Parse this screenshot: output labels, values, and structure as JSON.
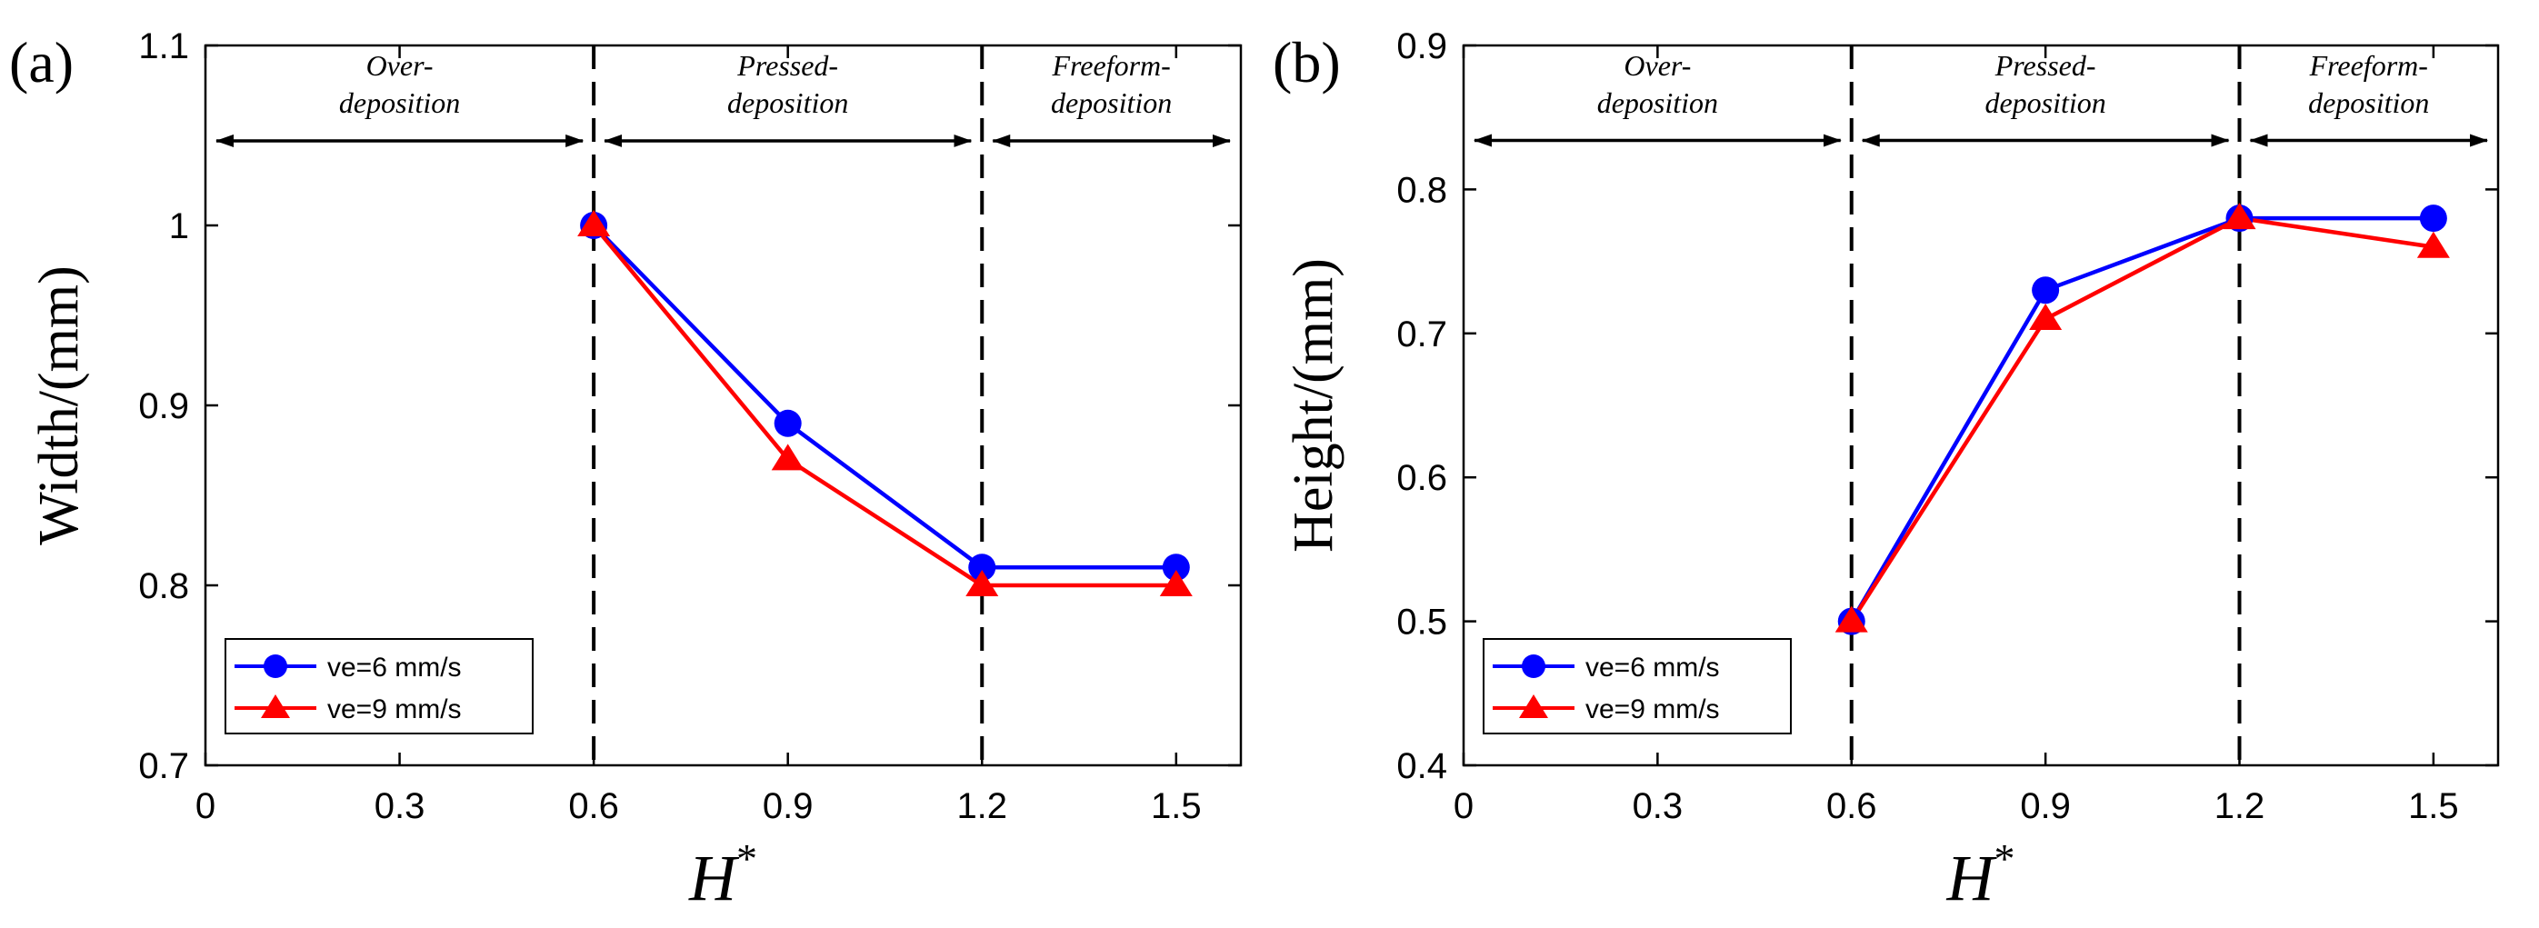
{
  "chart_data": [
    {
      "type": "line",
      "panel_label": "(a)",
      "xlabel": "H",
      "xlabel_superscript": "*",
      "ylabel": "Width/(mm)",
      "xlim": [
        0,
        1.6
      ],
      "ylim": [
        0.7,
        1.1
      ],
      "xticks": [
        "0",
        "0.3",
        "0.6",
        "0.9",
        "1.2",
        "1.5"
      ],
      "xtick_values": [
        0,
        0.3,
        0.6,
        0.9,
        1.2,
        1.5
      ],
      "yticks": [
        "0.7",
        "0.8",
        "0.9",
        "1",
        "1.1"
      ],
      "ytick_values": [
        0.7,
        0.8,
        0.9,
        1.0,
        1.1
      ],
      "dashed_lines_x": [
        0.6,
        1.2
      ],
      "arrow_y": 1.047,
      "regions": [
        {
          "line1": "Over-",
          "line2": "deposition",
          "from": 0,
          "to": 0.6
        },
        {
          "line1": "Pressed-",
          "line2": "deposition",
          "from": 0.6,
          "to": 1.2
        },
        {
          "line1": "Freeform-",
          "line2": "deposition",
          "from": 1.2,
          "to": 1.6
        }
      ],
      "legend_position": "bottom-left",
      "series": [
        {
          "name": "ve=6 mm/s",
          "color": "#0000ff",
          "marker": "circle",
          "x": [
            0.6,
            0.9,
            1.2,
            1.5
          ],
          "y": [
            1.0,
            0.89,
            0.81,
            0.81
          ]
        },
        {
          "name": "ve=9 mm/s",
          "color": "#ff0000",
          "marker": "triangle",
          "x": [
            0.6,
            0.9,
            1.2,
            1.5
          ],
          "y": [
            1.0,
            0.87,
            0.8,
            0.8
          ]
        }
      ]
    },
    {
      "type": "line",
      "panel_label": "(b)",
      "xlabel": "H",
      "xlabel_superscript": "*",
      "ylabel": "Height/(mm)",
      "xlim": [
        0,
        1.6
      ],
      "ylim": [
        0.4,
        0.9
      ],
      "xticks": [
        "0",
        "0.3",
        "0.6",
        "0.9",
        "1.2",
        "1.5"
      ],
      "xtick_values": [
        0,
        0.3,
        0.6,
        0.9,
        1.2,
        1.5
      ],
      "yticks": [
        "0.4",
        "0.5",
        "0.6",
        "0.7",
        "0.8",
        "0.9"
      ],
      "ytick_values": [
        0.4,
        0.5,
        0.6,
        0.7,
        0.8,
        0.9
      ],
      "dashed_lines_x": [
        0.6,
        1.2
      ],
      "arrow_y": 0.834,
      "regions": [
        {
          "line1": "Over-",
          "line2": "deposition",
          "from": 0,
          "to": 0.6
        },
        {
          "line1": "Pressed-",
          "line2": "deposition",
          "from": 0.6,
          "to": 1.2
        },
        {
          "line1": "Freeform-",
          "line2": "deposition",
          "from": 1.2,
          "to": 1.6
        }
      ],
      "legend_position": "bottom-left",
      "series": [
        {
          "name": "ve=6 mm/s",
          "color": "#0000ff",
          "marker": "circle",
          "x": [
            0.6,
            0.9,
            1.2,
            1.5
          ],
          "y": [
            0.5,
            0.73,
            0.78,
            0.78
          ]
        },
        {
          "name": "ve=9 mm/s",
          "color": "#ff0000",
          "marker": "triangle",
          "x": [
            0.6,
            0.9,
            1.2,
            1.5
          ],
          "y": [
            0.5,
            0.71,
            0.78,
            0.76
          ]
        }
      ]
    }
  ]
}
